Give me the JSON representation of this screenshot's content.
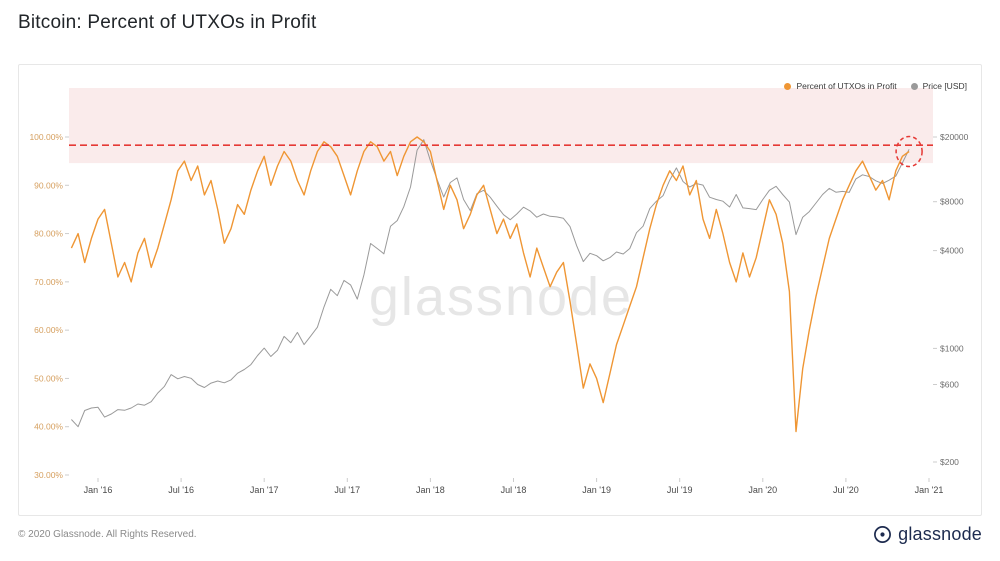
{
  "page": {
    "title": "Bitcoin: Percent of UTXOs in Profit",
    "footer_copyright": "© 2020 Glassnode. All Rights Reserved.",
    "brand": "glassnode",
    "watermark": "glassnode"
  },
  "legend": [
    {
      "label": "Percent of UTXOs in Profit",
      "color": "#EF9634"
    },
    {
      "label": "Price [USD]",
      "color": "#9A9A9A"
    }
  ],
  "chart_data": {
    "type": "line",
    "title": "Bitcoin: Percent of UTXOs in Profit",
    "xlabel": "",
    "ylabel_left": "Percent of UTXOs in Profit",
    "ylabel_right": "Price [USD]",
    "grid": false,
    "legend_position": "top-right",
    "x_axis": {
      "times": [
        2016.0,
        2016.5,
        2017.0,
        2017.5,
        2018.0,
        2018.5,
        2019.0,
        2019.5,
        2020.0,
        2020.5,
        2021.0
      ],
      "labels": [
        "Jan '16",
        "Jul '16",
        "Jan '17",
        "Jul '17",
        "Jan '18",
        "Jul '18",
        "Jan '19",
        "Jul '19",
        "Jan '20",
        "Jul '20",
        "Jan '21"
      ],
      "color": "#4A4A4A"
    },
    "y_left": {
      "scale": "linear",
      "range": [
        30,
        100
      ],
      "ticks": [
        100,
        90,
        80,
        70,
        60,
        50,
        40,
        30
      ],
      "labels": [
        "100.00%",
        "90.00%",
        "80.00%",
        "70.00%",
        "60.00%",
        "50.00%",
        "40.00%",
        "30.00%"
      ],
      "color": "#D6A060"
    },
    "y_right": {
      "scale": "log",
      "range": [
        200,
        20000
      ],
      "ticks": [
        20000,
        8000,
        4000,
        1000,
        600,
        200
      ],
      "labels": [
        "$20000",
        "$8000",
        "$4000",
        "$1000",
        "$600",
        "$200"
      ],
      "color": "#6E6E6E"
    },
    "annotations": {
      "band": {
        "bottom_pct": 94.6,
        "color": "#F6DEDE",
        "opacity": 0.6
      },
      "threshold_line": {
        "pct": 98.3,
        "color": "#E53935"
      },
      "highlight_circle": {
        "t": 2020.88,
        "pct": 97
      }
    },
    "series": [
      {
        "name": "Percent of UTXOs in Profit",
        "axis": "left",
        "unit": "%",
        "color": "#EF9634",
        "points": [
          [
            2015.84,
            77
          ],
          [
            2015.88,
            80
          ],
          [
            2015.92,
            74
          ],
          [
            2015.96,
            79
          ],
          [
            2016.0,
            83
          ],
          [
            2016.04,
            85
          ],
          [
            2016.08,
            78
          ],
          [
            2016.12,
            71
          ],
          [
            2016.16,
            74
          ],
          [
            2016.2,
            70
          ],
          [
            2016.24,
            76
          ],
          [
            2016.28,
            79
          ],
          [
            2016.32,
            73
          ],
          [
            2016.36,
            77
          ],
          [
            2016.4,
            82
          ],
          [
            2016.44,
            87
          ],
          [
            2016.48,
            93
          ],
          [
            2016.52,
            95
          ],
          [
            2016.56,
            91
          ],
          [
            2016.6,
            94
          ],
          [
            2016.64,
            88
          ],
          [
            2016.68,
            91
          ],
          [
            2016.72,
            85
          ],
          [
            2016.76,
            78
          ],
          [
            2016.8,
            81
          ],
          [
            2016.84,
            86
          ],
          [
            2016.88,
            84
          ],
          [
            2016.92,
            89
          ],
          [
            2016.96,
            93
          ],
          [
            2017.0,
            96
          ],
          [
            2017.04,
            90
          ],
          [
            2017.08,
            94
          ],
          [
            2017.12,
            97
          ],
          [
            2017.16,
            95
          ],
          [
            2017.2,
            91
          ],
          [
            2017.24,
            88
          ],
          [
            2017.28,
            93
          ],
          [
            2017.32,
            97
          ],
          [
            2017.36,
            99
          ],
          [
            2017.4,
            98
          ],
          [
            2017.44,
            96
          ],
          [
            2017.48,
            92
          ],
          [
            2017.52,
            88
          ],
          [
            2017.56,
            93
          ],
          [
            2017.6,
            97
          ],
          [
            2017.64,
            99
          ],
          [
            2017.68,
            98
          ],
          [
            2017.72,
            95
          ],
          [
            2017.76,
            97
          ],
          [
            2017.8,
            92
          ],
          [
            2017.84,
            96
          ],
          [
            2017.88,
            99
          ],
          [
            2017.92,
            100
          ],
          [
            2017.96,
            99
          ],
          [
            2018.0,
            97
          ],
          [
            2018.04,
            91
          ],
          [
            2018.08,
            85
          ],
          [
            2018.12,
            90
          ],
          [
            2018.16,
            87
          ],
          [
            2018.2,
            81
          ],
          [
            2018.24,
            84
          ],
          [
            2018.28,
            88
          ],
          [
            2018.32,
            90
          ],
          [
            2018.36,
            85
          ],
          [
            2018.4,
            80
          ],
          [
            2018.44,
            83
          ],
          [
            2018.48,
            79
          ],
          [
            2018.52,
            82
          ],
          [
            2018.56,
            76
          ],
          [
            2018.6,
            71
          ],
          [
            2018.64,
            77
          ],
          [
            2018.68,
            73
          ],
          [
            2018.72,
            69
          ],
          [
            2018.76,
            72
          ],
          [
            2018.8,
            74
          ],
          [
            2018.84,
            66
          ],
          [
            2018.88,
            57
          ],
          [
            2018.92,
            48
          ],
          [
            2018.96,
            53
          ],
          [
            2019.0,
            50
          ],
          [
            2019.04,
            45
          ],
          [
            2019.08,
            51
          ],
          [
            2019.12,
            57
          ],
          [
            2019.16,
            61
          ],
          [
            2019.2,
            65
          ],
          [
            2019.24,
            69
          ],
          [
            2019.28,
            75
          ],
          [
            2019.32,
            81
          ],
          [
            2019.36,
            86
          ],
          [
            2019.4,
            90
          ],
          [
            2019.44,
            93
          ],
          [
            2019.48,
            91
          ],
          [
            2019.52,
            94
          ],
          [
            2019.56,
            88
          ],
          [
            2019.6,
            91
          ],
          [
            2019.64,
            83
          ],
          [
            2019.68,
            79
          ],
          [
            2019.72,
            85
          ],
          [
            2019.76,
            80
          ],
          [
            2019.8,
            74
          ],
          [
            2019.84,
            70
          ],
          [
            2019.88,
            76
          ],
          [
            2019.92,
            71
          ],
          [
            2019.96,
            75
          ],
          [
            2020.0,
            81
          ],
          [
            2020.04,
            87
          ],
          [
            2020.08,
            84
          ],
          [
            2020.12,
            78
          ],
          [
            2020.16,
            68
          ],
          [
            2020.2,
            39
          ],
          [
            2020.24,
            52
          ],
          [
            2020.28,
            60
          ],
          [
            2020.32,
            67
          ],
          [
            2020.36,
            73
          ],
          [
            2020.4,
            79
          ],
          [
            2020.44,
            83
          ],
          [
            2020.48,
            87
          ],
          [
            2020.52,
            90
          ],
          [
            2020.56,
            93
          ],
          [
            2020.6,
            95
          ],
          [
            2020.64,
            92
          ],
          [
            2020.68,
            89
          ],
          [
            2020.72,
            91
          ],
          [
            2020.76,
            87
          ],
          [
            2020.8,
            93
          ],
          [
            2020.84,
            96
          ],
          [
            2020.88,
            97
          ]
        ]
      },
      {
        "name": "Price [USD]",
        "axis": "right",
        "unit": "USD",
        "color": "#9A9A9A",
        "points": [
          [
            2015.84,
            365
          ],
          [
            2015.88,
            330
          ],
          [
            2015.92,
            415
          ],
          [
            2015.96,
            430
          ],
          [
            2016.0,
            434
          ],
          [
            2016.04,
            378
          ],
          [
            2016.08,
            395
          ],
          [
            2016.12,
            420
          ],
          [
            2016.16,
            416
          ],
          [
            2016.2,
            430
          ],
          [
            2016.24,
            455
          ],
          [
            2016.28,
            447
          ],
          [
            2016.32,
            470
          ],
          [
            2016.36,
            532
          ],
          [
            2016.4,
            585
          ],
          [
            2016.44,
            690
          ],
          [
            2016.48,
            650
          ],
          [
            2016.52,
            672
          ],
          [
            2016.56,
            655
          ],
          [
            2016.6,
            600
          ],
          [
            2016.64,
            575
          ],
          [
            2016.68,
            612
          ],
          [
            2016.72,
            630
          ],
          [
            2016.76,
            614
          ],
          [
            2016.8,
            640
          ],
          [
            2016.84,
            704
          ],
          [
            2016.88,
            742
          ],
          [
            2016.92,
            795
          ],
          [
            2016.96,
            905
          ],
          [
            2017.0,
            1005
          ],
          [
            2017.04,
            892
          ],
          [
            2017.08,
            975
          ],
          [
            2017.12,
            1185
          ],
          [
            2017.16,
            1085
          ],
          [
            2017.2,
            1255
          ],
          [
            2017.24,
            1055
          ],
          [
            2017.28,
            1190
          ],
          [
            2017.32,
            1350
          ],
          [
            2017.36,
            1800
          ],
          [
            2017.4,
            2310
          ],
          [
            2017.44,
            2110
          ],
          [
            2017.48,
            2620
          ],
          [
            2017.52,
            2460
          ],
          [
            2017.56,
            2010
          ],
          [
            2017.6,
            2830
          ],
          [
            2017.64,
            4420
          ],
          [
            2017.68,
            4120
          ],
          [
            2017.72,
            3820
          ],
          [
            2017.76,
            5650
          ],
          [
            2017.8,
            6120
          ],
          [
            2017.84,
            7450
          ],
          [
            2017.88,
            9850
          ],
          [
            2017.92,
            16600
          ],
          [
            2017.96,
            19250
          ],
          [
            2018.0,
            14300
          ],
          [
            2018.04,
            11000
          ],
          [
            2018.08,
            8550
          ],
          [
            2018.12,
            10500
          ],
          [
            2018.16,
            11200
          ],
          [
            2018.2,
            8250
          ],
          [
            2018.24,
            7050
          ],
          [
            2018.28,
            8950
          ],
          [
            2018.32,
            9400
          ],
          [
            2018.36,
            8520
          ],
          [
            2018.4,
            7500
          ],
          [
            2018.44,
            6650
          ],
          [
            2018.48,
            6200
          ],
          [
            2018.52,
            6720
          ],
          [
            2018.56,
            7400
          ],
          [
            2018.6,
            7020
          ],
          [
            2018.64,
            6420
          ],
          [
            2018.68,
            6720
          ],
          [
            2018.72,
            6500
          ],
          [
            2018.76,
            6450
          ],
          [
            2018.8,
            6320
          ],
          [
            2018.84,
            5620
          ],
          [
            2018.88,
            4280
          ],
          [
            2018.92,
            3420
          ],
          [
            2018.96,
            3850
          ],
          [
            2019.0,
            3720
          ],
          [
            2019.04,
            3460
          ],
          [
            2019.08,
            3620
          ],
          [
            2019.12,
            3920
          ],
          [
            2019.16,
            3810
          ],
          [
            2019.2,
            4120
          ],
          [
            2019.24,
            5150
          ],
          [
            2019.28,
            5650
          ],
          [
            2019.32,
            7250
          ],
          [
            2019.36,
            8050
          ],
          [
            2019.4,
            8720
          ],
          [
            2019.44,
            10850
          ],
          [
            2019.48,
            12900
          ],
          [
            2019.52,
            10650
          ],
          [
            2019.56,
            9850
          ],
          [
            2019.6,
            10350
          ],
          [
            2019.64,
            10120
          ],
          [
            2019.68,
            8520
          ],
          [
            2019.72,
            8250
          ],
          [
            2019.76,
            8050
          ],
          [
            2019.8,
            7420
          ],
          [
            2019.84,
            8850
          ],
          [
            2019.88,
            7320
          ],
          [
            2019.92,
            7250
          ],
          [
            2019.96,
            7150
          ],
          [
            2020.0,
            8250
          ],
          [
            2020.04,
            9400
          ],
          [
            2020.08,
            9950
          ],
          [
            2020.12,
            8850
          ],
          [
            2020.16,
            7950
          ],
          [
            2020.2,
            5020
          ],
          [
            2020.24,
            6420
          ],
          [
            2020.28,
            6950
          ],
          [
            2020.32,
            7850
          ],
          [
            2020.36,
            8850
          ],
          [
            2020.4,
            9650
          ],
          [
            2020.44,
            9150
          ],
          [
            2020.48,
            9250
          ],
          [
            2020.52,
            9120
          ],
          [
            2020.56,
            11050
          ],
          [
            2020.6,
            11700
          ],
          [
            2020.64,
            11420
          ],
          [
            2020.68,
            10750
          ],
          [
            2020.72,
            10350
          ],
          [
            2020.76,
            10850
          ],
          [
            2020.8,
            11500
          ],
          [
            2020.84,
            13850
          ],
          [
            2020.88,
            16800
          ]
        ]
      }
    ]
  }
}
